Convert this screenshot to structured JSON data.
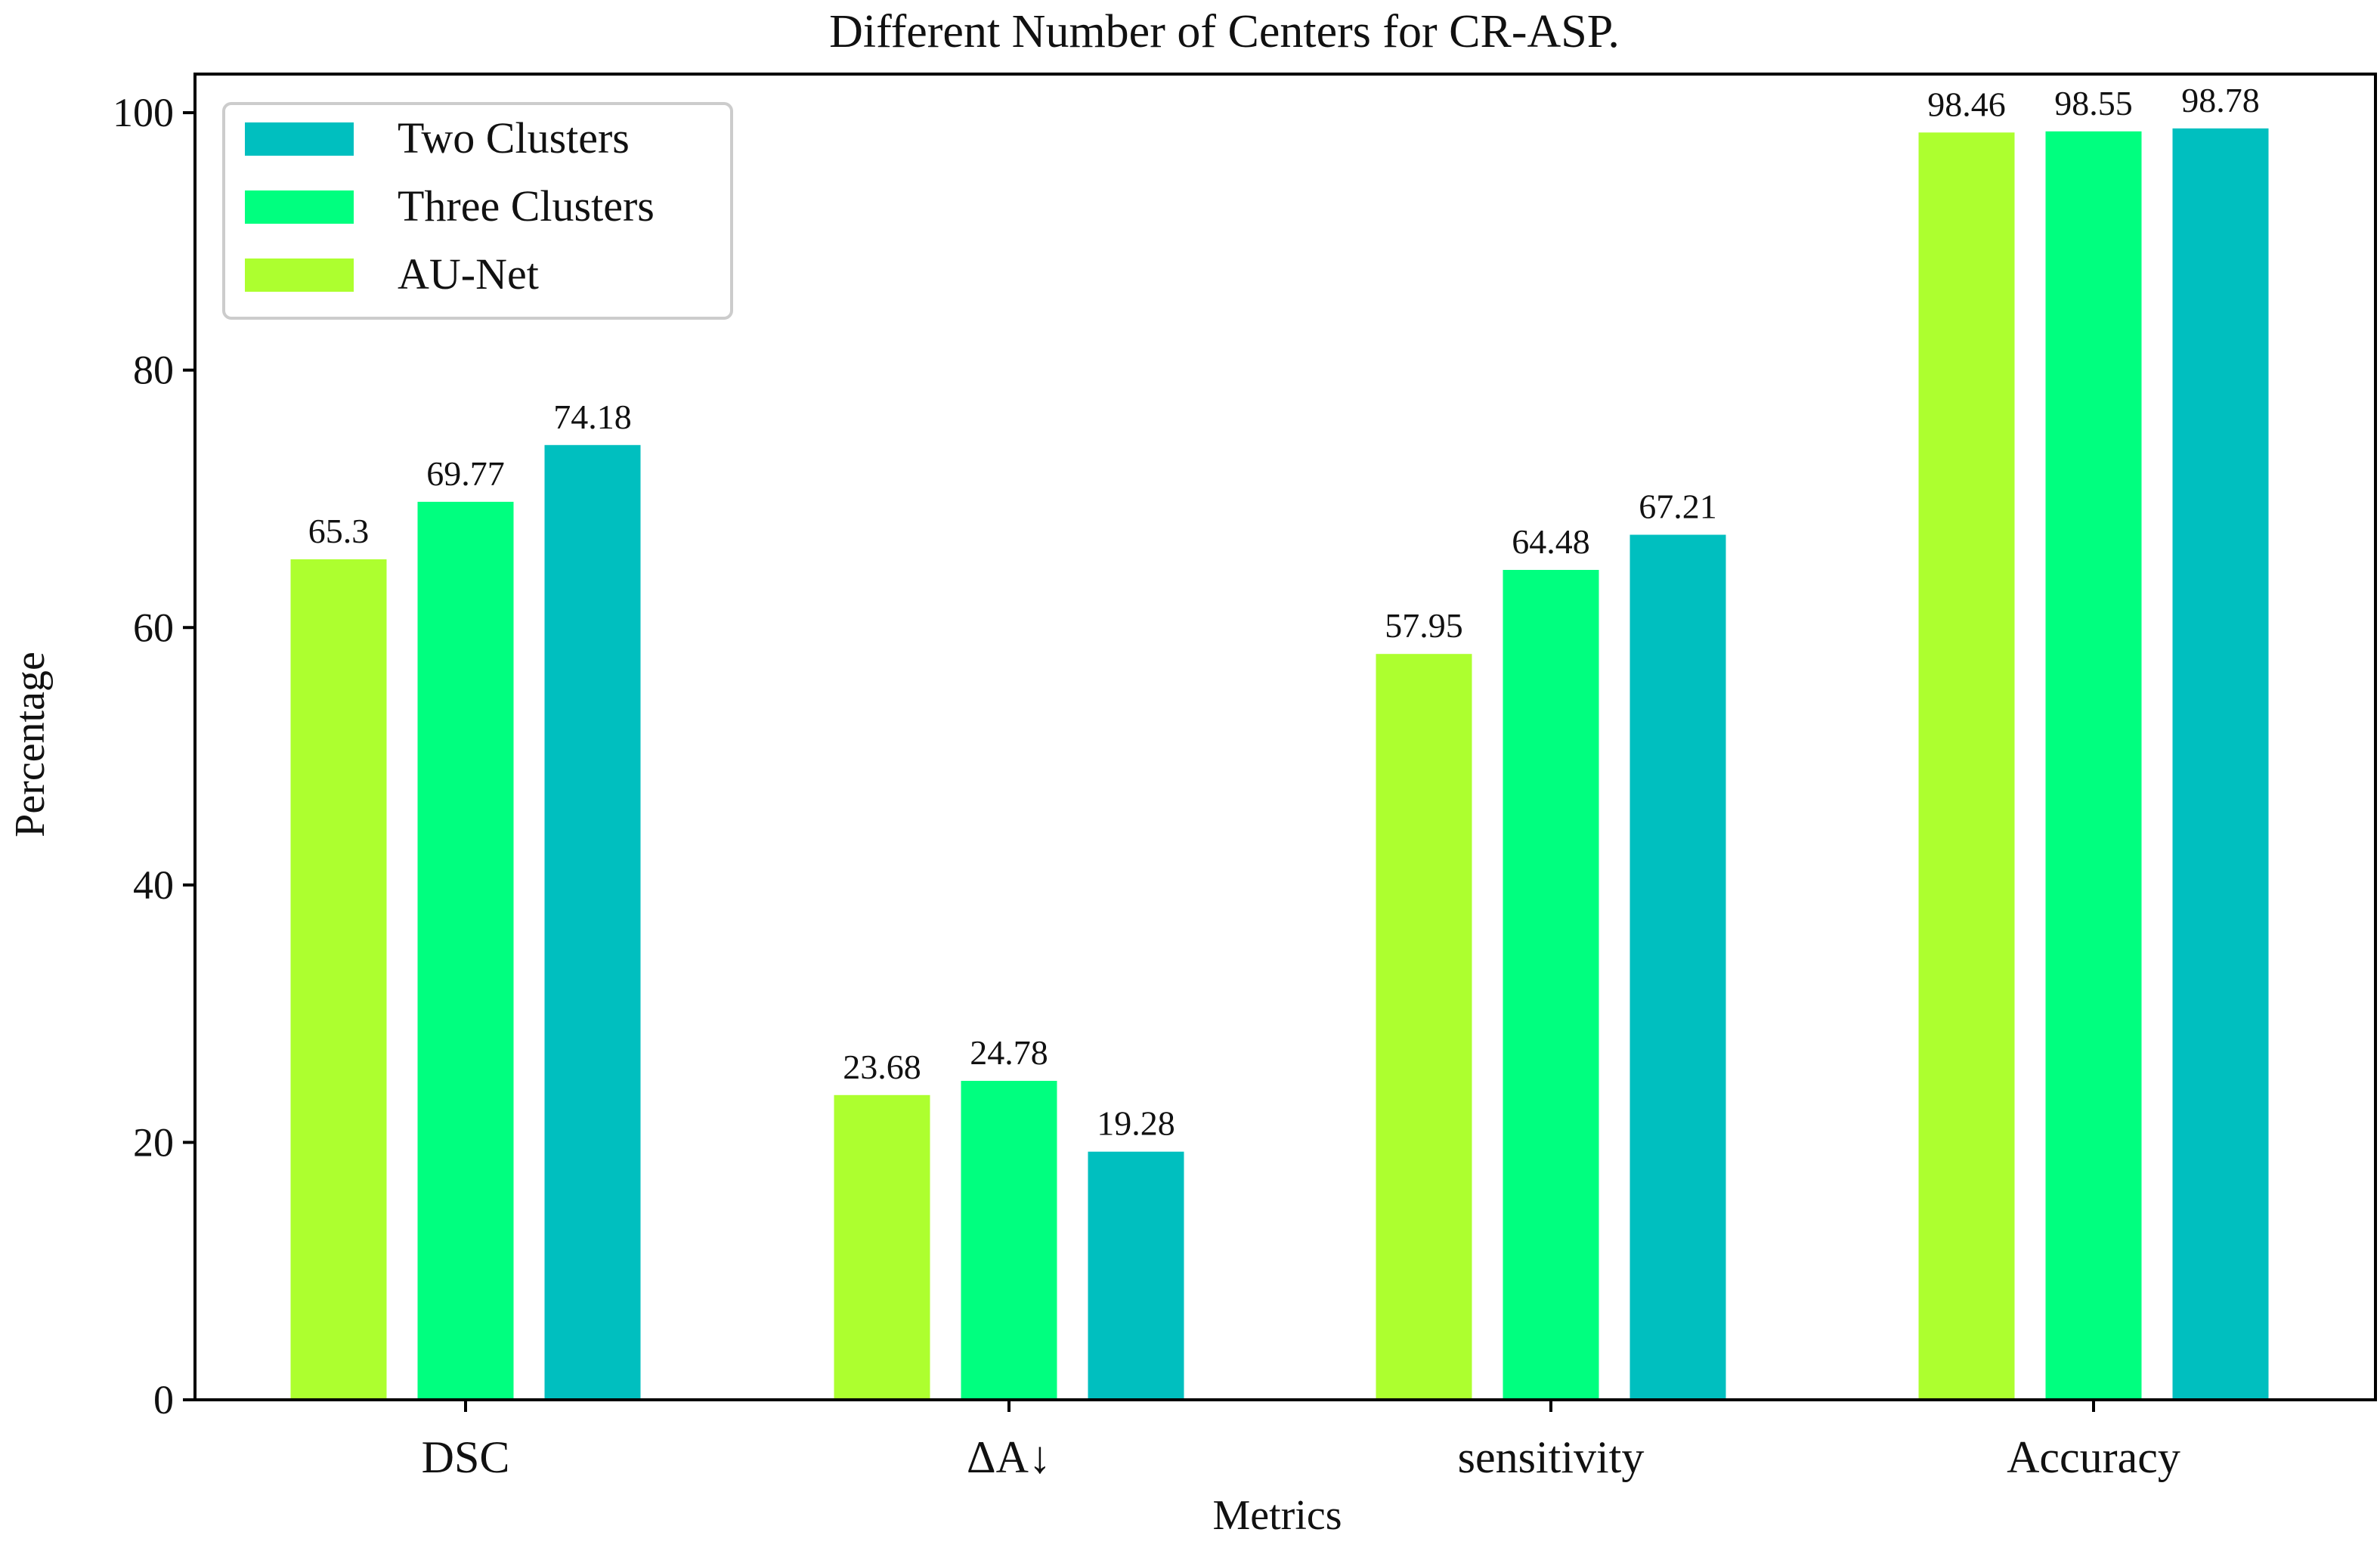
{
  "chart_data": {
    "type": "bar",
    "title": "Different Number of Centers for CR-ASP.",
    "xlabel": "Metrics",
    "ylabel": "Percentage",
    "ylim": [
      0,
      103
    ],
    "yticks": [
      0,
      20,
      40,
      60,
      80,
      100
    ],
    "grid": false,
    "legend_position": "top-left",
    "categories": [
      "DSC",
      "ΔA↓",
      "sensitivity",
      "Accuracy"
    ],
    "series": [
      {
        "name": "AU-Net",
        "color": "#adff2f",
        "values": [
          65.3,
          23.68,
          57.95,
          98.46
        ],
        "labels": [
          "65.3",
          "23.68",
          "57.95",
          "98.46"
        ]
      },
      {
        "name": "Three Clusters",
        "color": "#00ff7f",
        "values": [
          69.77,
          24.78,
          64.48,
          98.55
        ],
        "labels": [
          "69.77",
          "24.78",
          "64.48",
          "98.55"
        ]
      },
      {
        "name": "Two Clusters",
        "color": "#00bfbf",
        "values": [
          74.18,
          19.28,
          67.21,
          98.78
        ],
        "labels": [
          "74.18",
          "19.28",
          "67.21",
          "98.78"
        ]
      }
    ],
    "legend_order": [
      "Two Clusters",
      "Three Clusters",
      "AU-Net"
    ]
  }
}
